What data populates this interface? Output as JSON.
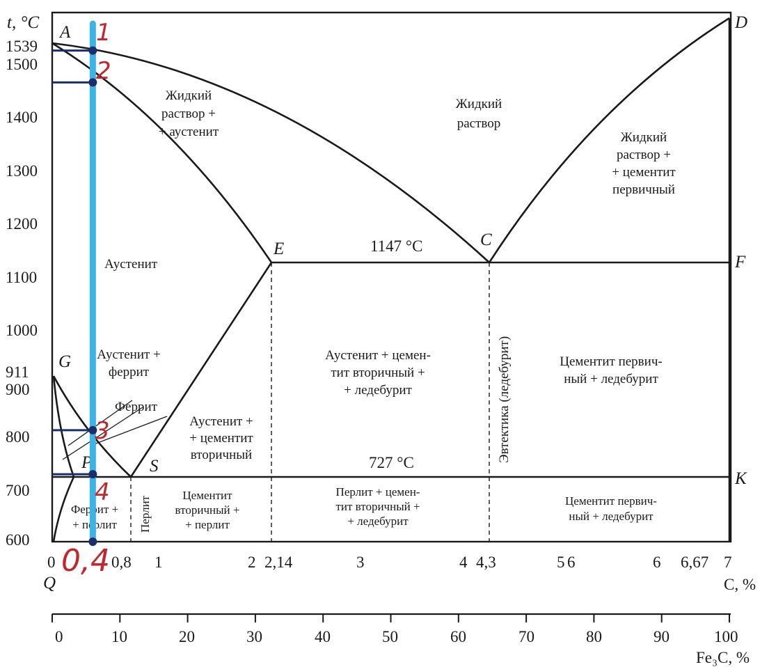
{
  "chart_data": {
    "type": "diagram",
    "title": "",
    "y_axis": {
      "label": "t, °C",
      "ticks": [
        "1539",
        "1500",
        "1400",
        "1300",
        "1200",
        "1100",
        "1000",
        "911",
        "900",
        "800",
        "700",
        "600"
      ]
    },
    "x_axis_carbon": {
      "label": "C, %",
      "ticks": [
        "0",
        "0,8",
        "1",
        "2",
        "2,14",
        "3",
        "4",
        "4,3",
        "5",
        "6",
        "6",
        "6,67",
        "7"
      ]
    },
    "x_axis_cementite": {
      "label": "Fe₃C, %",
      "ticks": [
        "0",
        "10",
        "20",
        "30",
        "40",
        "50",
        "60",
        "70",
        "80",
        "90",
        "100"
      ]
    },
    "points": [
      "A",
      "D",
      "E",
      "C",
      "F",
      "G",
      "P",
      "S",
      "K",
      "Q"
    ],
    "temperatures": {
      "eutectic": "1147 °C",
      "eutectoid": "727 °C"
    },
    "regions": {
      "liquid": [
        "Жидкий",
        "раствор"
      ],
      "liquid_austenite": [
        "Жидкий",
        "раствор +",
        "+ аустенит"
      ],
      "liquid_cementite": [
        "Жидкий",
        "раствор +",
        "+ цементит",
        "первичный"
      ],
      "austenite": "Аустенит",
      "austenite_ferrite": [
        "Аустенит +",
        "феррит"
      ],
      "ferrite": "Феррит",
      "austenite_cementite_ii": [
        "Аустенит +",
        "+ цементит",
        "вторичный"
      ],
      "austenite_cementite_ledeburite": [
        "Аустенит + цемен-",
        "тит вторичный +",
        "+ ледебурит"
      ],
      "cementite_i_ledeburite_high": [
        "Цементит первич-",
        "ный + ледебурит"
      ],
      "ferrite_pearlite": [
        "Феррит +",
        "+ перлит"
      ],
      "pearlite": "Перлит",
      "cementite_ii_pearlite": [
        "Цементит",
        "вторичный +",
        "+ перлит"
      ],
      "pearlite_cementite_ledeburite": [
        "Перлит + цемен-",
        "тит вторичный +",
        "+ ледебурит"
      ],
      "cementite_i_ledeburite_low": [
        "Цементит первич-",
        "ный + ледебурит"
      ],
      "eutectic_line_label": "Эвтектика (ледебурит)"
    },
    "annotations": {
      "alloy_carbon": "0,4",
      "marks": [
        "1",
        "2",
        "3",
        "4"
      ],
      "alloy_line_color": "#3cb4e6",
      "marker_color": "#1b2d6b",
      "hand_color": "#c0282d"
    },
    "data": {
      "temp_ticks_C": [
        1539,
        1500,
        1400,
        1300,
        1200,
        1100,
        1000,
        911,
        900,
        800,
        700,
        600
      ],
      "alloy_carbon_pct": 0.4,
      "cooling_points_C": [
        1525,
        1465,
        810,
        727
      ],
      "lines": {
        "liquidus_AC": [
          [
            0,
            1539
          ],
          [
            4.3,
            1147
          ]
        ],
        "liquidus_CD": [
          [
            4.3,
            1147
          ],
          [
            6.67,
            1600
          ]
        ],
        "solidus_AE": [
          [
            0,
            1539
          ],
          [
            2.14,
            1147
          ]
        ],
        "eutectic_ECF": [
          [
            2.14,
            1147
          ],
          [
            6.67,
            1147
          ]
        ],
        "acm_ES": [
          [
            2.14,
            1147
          ],
          [
            0.8,
            727
          ]
        ],
        "a3_GS": [
          [
            0,
            911
          ],
          [
            0.8,
            727
          ]
        ],
        "eutectoid_PSK": [
          [
            0.02,
            727
          ],
          [
            6.67,
            727
          ]
        ],
        "solvus_PQ": [
          [
            0.02,
            727
          ],
          [
            0.006,
            600
          ]
        ]
      }
    }
  }
}
